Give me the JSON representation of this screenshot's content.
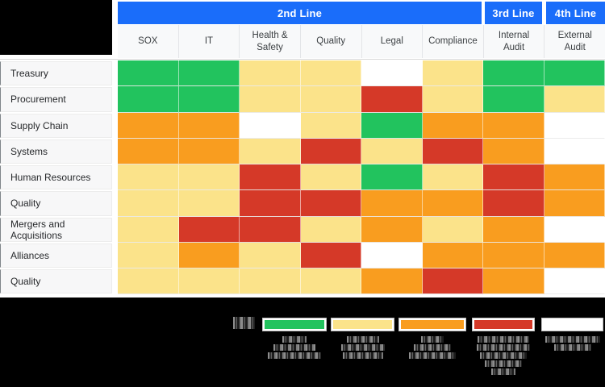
{
  "colors": {
    "header_blue": "#1a6dfa",
    "green": "#22c35e",
    "yellow": "#fbe38a",
    "orange": "#f99d1f",
    "red": "#d53928",
    "white": "#ffffff",
    "legend_background": "#000000"
  },
  "chart_data": {
    "type": "heatmap",
    "title": "",
    "column_groups": [
      {
        "label": "2nd Line",
        "span": 6
      },
      {
        "label": "3rd Line",
        "span": 1
      },
      {
        "label": "4th Line",
        "span": 1
      }
    ],
    "columns": [
      "SOX",
      "IT",
      "Health & Safety",
      "Quality",
      "Legal",
      "Compliance",
      "Internal Audit",
      "External Audit"
    ],
    "rows": [
      "Treasury",
      "Procurement",
      "Supply Chain",
      "Systems",
      "Human Resources",
      "Quality",
      "Mergers and Acquisitions",
      "Alliances",
      "Quality"
    ],
    "values": [
      [
        "green",
        "green",
        "yellow",
        "yellow",
        "white",
        "yellow",
        "green",
        "green"
      ],
      [
        "green",
        "green",
        "yellow",
        "yellow",
        "red",
        "yellow",
        "green",
        "yellow"
      ],
      [
        "orange",
        "orange",
        "white",
        "yellow",
        "green",
        "orange",
        "orange",
        "white"
      ],
      [
        "orange",
        "orange",
        "yellow",
        "red",
        "yellow",
        "red",
        "orange",
        "white"
      ],
      [
        "yellow",
        "yellow",
        "red",
        "yellow",
        "green",
        "yellow",
        "red",
        "orange"
      ],
      [
        "yellow",
        "yellow",
        "red",
        "red",
        "orange",
        "orange",
        "red",
        "orange"
      ],
      [
        "yellow",
        "red",
        "red",
        "yellow",
        "orange",
        "yellow",
        "orange",
        "white"
      ],
      [
        "yellow",
        "orange",
        "yellow",
        "red",
        "white",
        "orange",
        "orange",
        "orange"
      ],
      [
        "yellow",
        "yellow",
        "yellow",
        "yellow",
        "orange",
        "red",
        "orange",
        "white"
      ]
    ],
    "value_scale": [
      "green",
      "yellow",
      "orange",
      "red",
      "white"
    ],
    "legend": {
      "key_label_redacted": true,
      "items": [
        {
          "color": "green",
          "label_redacted": true,
          "label_lines": 3
        },
        {
          "color": "yellow",
          "label_redacted": true,
          "label_lines": 3
        },
        {
          "color": "orange",
          "label_redacted": true,
          "label_lines": 3
        },
        {
          "color": "red",
          "label_redacted": true,
          "label_lines": 5
        },
        {
          "color": "white",
          "label_redacted": true,
          "label_lines": 2
        }
      ]
    }
  }
}
